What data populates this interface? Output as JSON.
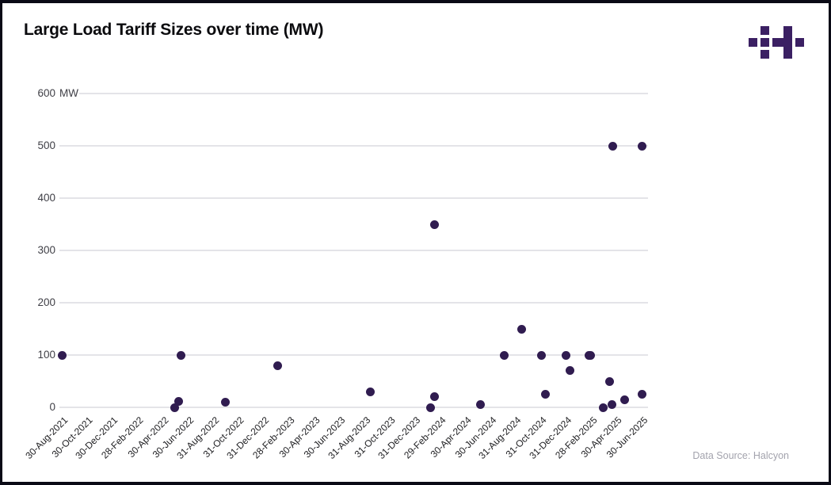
{
  "header": {
    "title": "Large Load Tariff Sizes over time (MW)"
  },
  "footer": {
    "data_source": "Data Source: Halcyon"
  },
  "logo": {
    "name": "halcyon-logo",
    "color": "#3b2063"
  },
  "chart_data": {
    "type": "scatter",
    "title": "Large Load Tariff Sizes over time (MW)",
    "xlabel": "",
    "ylabel": "MW",
    "y_unit": "MW",
    "ylim": [
      0,
      600
    ],
    "yticks": [
      0,
      100,
      200,
      300,
      400,
      500,
      600
    ],
    "grid": true,
    "legend_position": "none",
    "x_type": "time",
    "x_range": [
      "2021-08-30",
      "2025-06-30"
    ],
    "xtick_labels": [
      "30-Aug-2021",
      "30-Oct-2021",
      "30-Dec-2021",
      "28-Feb-2022",
      "30-Apr-2022",
      "30-Jun-2022",
      "31-Aug-2022",
      "31-Oct-2022",
      "31-Dec-2022",
      "28-Feb-2023",
      "30-Apr-2023",
      "30-Jun-2023",
      "31-Aug-2023",
      "31-Oct-2023",
      "31-Dec-2023",
      "29-Feb-2024",
      "30-Apr-2024",
      "30-Jun-2024",
      "31-Aug-2024",
      "31-Oct-2024",
      "31-Dec-2024",
      "28-Feb-2025",
      "30-Apr-2025",
      "30-Jun-2025"
    ],
    "point_color": "#301c50",
    "points": [
      {
        "date": "2021-08-30",
        "mw": 100
      },
      {
        "date": "2022-05-29",
        "mw": 0
      },
      {
        "date": "2022-06-09",
        "mw": 12
      },
      {
        "date": "2022-06-13",
        "mw": 100
      },
      {
        "date": "2022-09-29",
        "mw": 10
      },
      {
        "date": "2023-02-02",
        "mw": 80
      },
      {
        "date": "2023-09-13",
        "mw": 30
      },
      {
        "date": "2024-02-06",
        "mw": 0
      },
      {
        "date": "2024-02-15",
        "mw": 20
      },
      {
        "date": "2024-02-16",
        "mw": 350
      },
      {
        "date": "2024-06-06",
        "mw": 5
      },
      {
        "date": "2024-08-03",
        "mw": 100
      },
      {
        "date": "2024-09-14",
        "mw": 150
      },
      {
        "date": "2024-11-01",
        "mw": 100
      },
      {
        "date": "2024-11-10",
        "mw": 25
      },
      {
        "date": "2024-12-30",
        "mw": 100
      },
      {
        "date": "2025-01-07",
        "mw": 70
      },
      {
        "date": "2025-02-22",
        "mw": 100
      },
      {
        "date": "2025-02-27",
        "mw": 100
      },
      {
        "date": "2025-03-30",
        "mw": 0
      },
      {
        "date": "2025-04-14",
        "mw": 50
      },
      {
        "date": "2025-04-20",
        "mw": 5
      },
      {
        "date": "2025-04-21",
        "mw": 500
      },
      {
        "date": "2025-05-19",
        "mw": 15
      },
      {
        "date": "2025-06-30",
        "mw": 500
      },
      {
        "date": "2025-06-30",
        "mw": 25
      }
    ]
  }
}
